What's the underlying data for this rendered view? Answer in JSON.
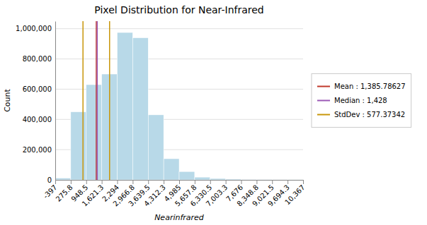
{
  "chart_data": {
    "type": "histogram",
    "title": "Pixel Distribution for Near-Infrared",
    "xlabel": "Nearinfrared",
    "ylabel": "Count",
    "color": "#b8d9e8",
    "bins": [
      -397,
      275.8,
      948.5,
      1621.3,
      2294,
      2966.8,
      3639.5,
      4312.3,
      4985,
      5657.8,
      6330.5,
      7003.3,
      7676,
      8348.8,
      9021.5,
      9694.3,
      10367
    ],
    "values": [
      12000,
      450000,
      630000,
      700000,
      975000,
      940000,
      430000,
      140000,
      55000,
      18000,
      9000,
      5000,
      3500,
      3000,
      2000,
      1500
    ],
    "series": [
      {
        "name": "Mean : 1,385.78627",
        "color": "#c0392b",
        "x": [
          1385.78627
        ]
      },
      {
        "name": "Median : 1,428",
        "color": "#9b59b6",
        "x": [
          1428.0
        ]
      },
      {
        "name": "StdDev : 577.37342",
        "color": "#c8960a",
        "x": [
          808.41285,
          1963.16
        ]
      }
    ],
    "xlim": [
      -397,
      10367
    ],
    "xticks": [
      -397,
      275.8,
      948.5,
      {
        "value": 1621.3,
        "label": "1,621.3"
      },
      {
        "value": 2294,
        "label": "2,294"
      },
      {
        "value": 2966.8,
        "label": "2,966.8"
      },
      {
        "value": 3639.5,
        "label": "3,639.5"
      },
      {
        "value": 4312.3,
        "label": "4,312.3"
      },
      {
        "value": 4985,
        "label": "4,985"
      },
      {
        "value": 5657.8,
        "label": "5,657.8"
      },
      {
        "value": 6330.5,
        "label": "6,330.5"
      },
      {
        "value": 7003.3,
        "label": "7,003.3"
      },
      {
        "value": 7676,
        "label": "7,676"
      },
      {
        "value": 8348.8,
        "label": "8,348.8"
      },
      {
        "value": 9021.5,
        "label": "9,021.5"
      },
      {
        "value": 9694.3,
        "label": "9,694.3"
      },
      {
        "value": 10367,
        "label": "10,367"
      }
    ],
    "ylim": [
      0,
      1050000
    ],
    "yticks": [
      0,
      {
        "value": 200000,
        "label": "200,000"
      },
      {
        "value": 400000,
        "label": "400,000"
      },
      {
        "value": 600000,
        "label": "600,000"
      },
      {
        "value": 800000,
        "label": "800,000"
      },
      {
        "value": 1000000,
        "label": "1,000,000"
      }
    ],
    "grid": true,
    "legend": "right"
  }
}
